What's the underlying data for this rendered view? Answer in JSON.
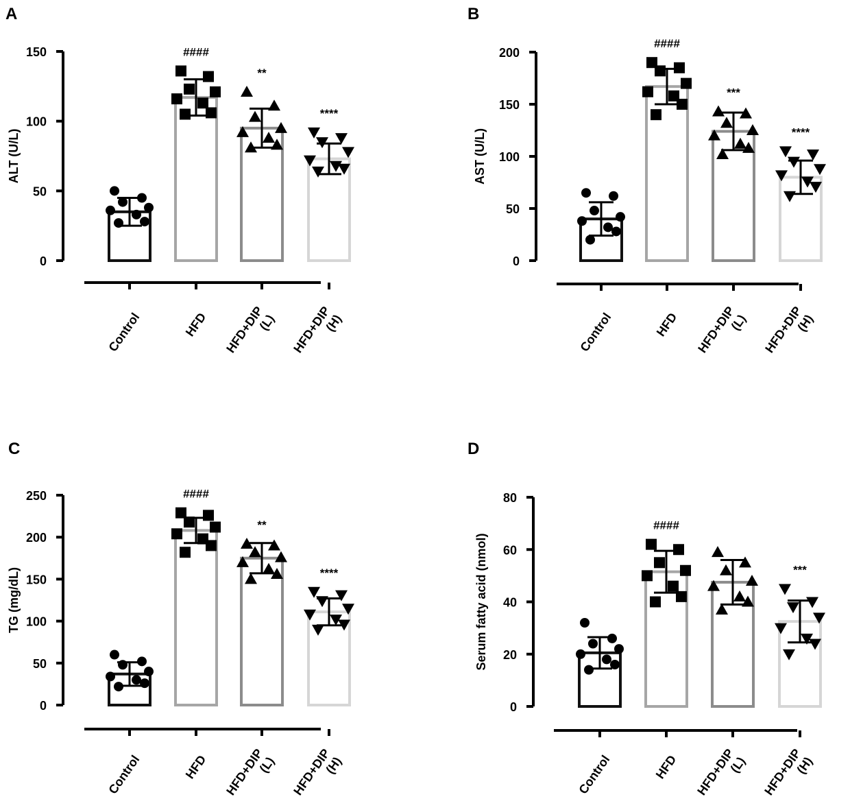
{
  "colors": {
    "control": "#111111",
    "hfd": "#a6a6a6",
    "dip_low": "#8c8c8c",
    "dip_high": "#d6d6d6",
    "marker": "#000000"
  },
  "chart_data": [
    {
      "panel": "A",
      "type": "bar",
      "ylabel": "ALT (U/L)",
      "ylim": [
        0,
        150
      ],
      "yticks": [
        0,
        50,
        100,
        150
      ],
      "categories": [
        "Control",
        "HFD",
        "HFD+DIP (L)",
        "HFD+DIP (H)"
      ],
      "category_lines": [
        [
          "Control"
        ],
        [
          "HFD"
        ],
        [
          "HFD+DIP",
          "(L)"
        ],
        [
          "HFD+DIP",
          "(H)"
        ]
      ],
      "markers": [
        "circle",
        "square",
        "triangle-up",
        "triangle-down"
      ],
      "means": [
        35,
        117,
        95,
        73
      ],
      "sd": [
        10,
        13,
        14,
        11
      ],
      "significance": [
        "",
        "####",
        "**",
        "****"
      ],
      "points": [
        [
          50,
          45,
          42,
          38,
          36,
          33,
          28,
          27
        ],
        [
          136,
          132,
          123,
          121,
          116,
          113,
          106,
          105
        ],
        [
          121,
          111,
          103,
          95,
          92,
          88,
          83,
          81
        ],
        [
          92,
          88,
          85,
          78,
          72,
          68,
          66,
          64
        ]
      ]
    },
    {
      "panel": "B",
      "type": "bar",
      "ylabel": "AST (U/L)",
      "ylim": [
        0,
        200
      ],
      "yticks": [
        0,
        50,
        100,
        150,
        200
      ],
      "categories": [
        "Control",
        "HFD",
        "HFD+DIP (L)",
        "HFD+DIP (H)"
      ],
      "category_lines": [
        [
          "Control"
        ],
        [
          "HFD"
        ],
        [
          "HFD+DIP",
          "(L)"
        ],
        [
          "HFD+DIP",
          "(H)"
        ]
      ],
      "markers": [
        "circle",
        "square",
        "triangle-up",
        "triangle-down"
      ],
      "means": [
        40,
        167,
        124,
        80
      ],
      "sd": [
        16,
        17,
        18,
        16
      ],
      "significance": [
        "",
        "####",
        "***",
        "****"
      ],
      "points": [
        [
          65,
          62,
          48,
          42,
          38,
          32,
          28,
          20
        ],
        [
          190,
          185,
          182,
          170,
          162,
          158,
          150,
          140
        ],
        [
          143,
          141,
          132,
          125,
          120,
          112,
          108,
          102
        ],
        [
          105,
          102,
          95,
          88,
          82,
          76,
          71,
          62
        ]
      ]
    },
    {
      "panel": "C",
      "type": "bar",
      "ylabel": "TG (mg/dL)",
      "ylim": [
        0,
        250
      ],
      "yticks": [
        0,
        50,
        100,
        150,
        200,
        250
      ],
      "categories": [
        "Control",
        "HFD",
        "HFD+DIP (L)",
        "HFD+DIP (H)"
      ],
      "category_lines": [
        [
          "Control"
        ],
        [
          "HFD"
        ],
        [
          "HFD+DIP",
          "(L)"
        ],
        [
          "HFD+DIP",
          "(H)"
        ]
      ],
      "markers": [
        "circle",
        "square",
        "triangle-up",
        "triangle-down"
      ],
      "means": [
        37,
        208,
        175,
        111
      ],
      "sd": [
        14,
        15,
        18,
        16
      ],
      "significance": [
        "",
        "####",
        "**",
        "****"
      ],
      "points": [
        [
          60,
          52,
          48,
          40,
          34,
          30,
          26,
          22
        ],
        [
          229,
          226,
          218,
          212,
          204,
          198,
          190,
          182
        ],
        [
          192,
          190,
          182,
          176,
          170,
          162,
          156,
          150
        ],
        [
          135,
          131,
          124,
          115,
          108,
          102,
          96,
          90
        ]
      ]
    },
    {
      "panel": "D",
      "type": "bar",
      "ylabel": "Serum fatty acid (nmol)",
      "ylim": [
        0,
        80
      ],
      "yticks": [
        0,
        20,
        40,
        60,
        80
      ],
      "categories": [
        "Control",
        "HFD",
        "HFD+DIP (L)",
        "HFD+DIP (H)"
      ],
      "category_lines": [
        [
          "Control"
        ],
        [
          "HFD"
        ],
        [
          "HFD+DIP",
          "(L)"
        ],
        [
          "HFD+DIP",
          "(H)"
        ]
      ],
      "markers": [
        "circle",
        "square",
        "triangle-up",
        "triangle-down"
      ],
      "means": [
        20.5,
        51.5,
        47.5,
        32.5
      ],
      "sd": [
        6,
        8,
        8.5,
        8
      ],
      "significance": [
        "",
        "####",
        "",
        "***"
      ],
      "points": [
        [
          32,
          26,
          24,
          22,
          20,
          18,
          16,
          14
        ],
        [
          62,
          60,
          55,
          52,
          50,
          46,
          42,
          40
        ],
        [
          59,
          55,
          52,
          48,
          46,
          42,
          40,
          37
        ],
        [
          45,
          40,
          38,
          34,
          30,
          26,
          24,
          20
        ]
      ]
    }
  ]
}
